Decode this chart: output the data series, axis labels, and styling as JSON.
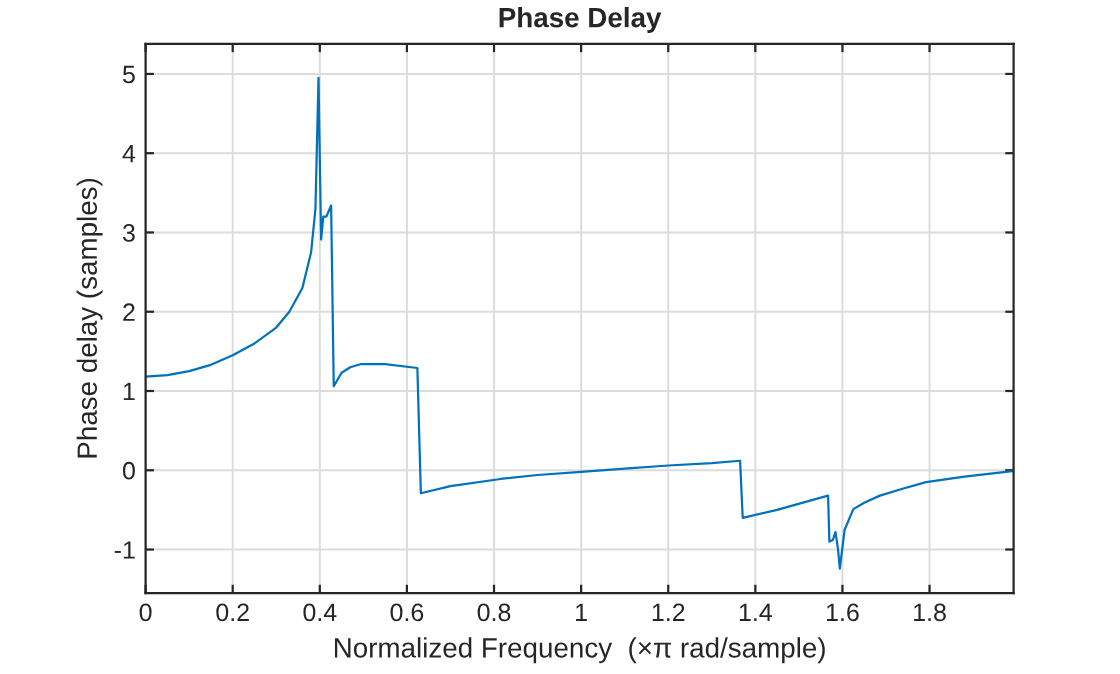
{
  "chart_data": {
    "type": "line",
    "title": "Phase Delay",
    "xlabel": "Normalized Frequency  (×π rad/sample)",
    "ylabel": "Phase delay (samples)",
    "series": [
      {
        "color": "#0072bd",
        "x": [
          0,
          0.05,
          0.1,
          0.15,
          0.2,
          0.25,
          0.3,
          0.33,
          0.36,
          0.38,
          0.39,
          0.397,
          0.403,
          0.408,
          0.415,
          0.426,
          0.432,
          0.45,
          0.47,
          0.495,
          0.55,
          0.624,
          0.632,
          0.7,
          0.815,
          0.9,
          1.0,
          1.1,
          1.2,
          1.3,
          1.365,
          1.371,
          1.45,
          1.567,
          1.57,
          1.578,
          1.584,
          1.59,
          1.594,
          1.605,
          1.625,
          1.65,
          1.686,
          1.74,
          1.792,
          1.88,
          1.99
        ],
        "values": [
          1.18,
          1.2,
          1.25,
          1.33,
          1.45,
          1.6,
          1.8,
          2.0,
          2.3,
          2.75,
          3.3,
          4.95,
          2.91,
          3.2,
          3.2,
          3.34,
          1.06,
          1.23,
          1.3,
          1.34,
          1.34,
          1.29,
          -0.29,
          -0.2,
          -0.11,
          -0.06,
          -0.02,
          0.02,
          0.06,
          0.09,
          0.12,
          -0.6,
          -0.5,
          -0.32,
          -0.9,
          -0.88,
          -0.78,
          -1.0,
          -1.24,
          -0.75,
          -0.49,
          -0.41,
          -0.32,
          -0.23,
          -0.15,
          -0.08,
          -0.01
        ]
      }
    ],
    "xlim": [
      0,
      1.993
    ],
    "ylim": [
      -1.55,
      5.38
    ],
    "xticks": [
      0,
      0.2,
      0.4,
      0.6,
      0.8,
      1,
      1.2,
      1.4,
      1.6,
      1.8
    ],
    "yticks": [
      -1,
      0,
      1,
      2,
      3,
      4,
      5
    ],
    "grid": true,
    "legend": false
  }
}
